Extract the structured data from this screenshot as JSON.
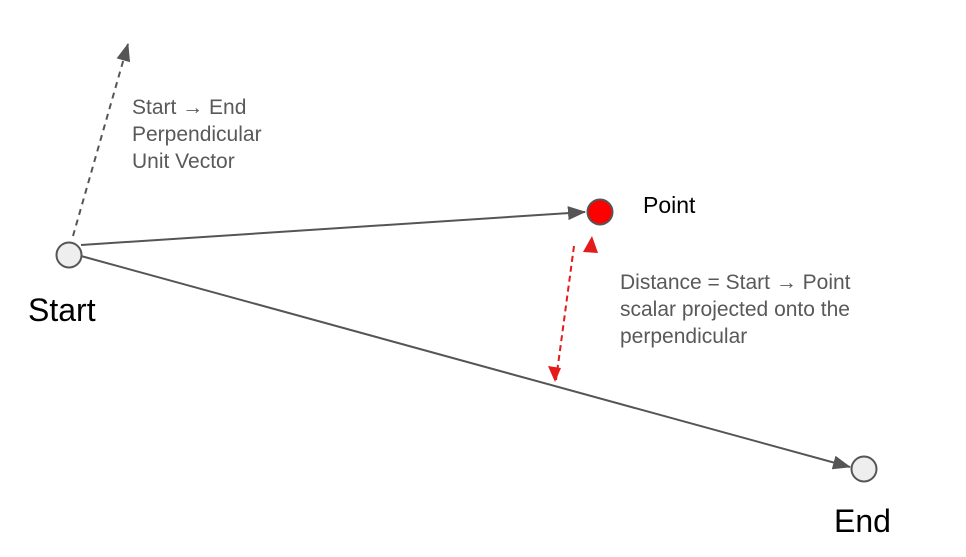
{
  "labels": {
    "start": "Start",
    "end": "End",
    "point": "Point"
  },
  "perpendicular_note": [
    "Start → End",
    "Perpendicular",
    "Unit Vector"
  ],
  "distance_note": [
    "Distance = Start → Point",
    "scalar projected onto the",
    "perpendicular"
  ],
  "colors": {
    "line": "#555555",
    "node_fill": "#eeeeee",
    "point_fill": "#ff0000",
    "distance_arrow": "#e31b1b",
    "note_text": "#595959"
  }
}
